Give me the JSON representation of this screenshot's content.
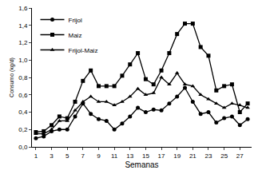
{
  "chart_data": {
    "type": "line",
    "x_label": "Semanas",
    "y_label": "Consumo (kg/d)",
    "x": [
      1,
      2,
      3,
      4,
      5,
      6,
      7,
      8,
      9,
      10,
      11,
      12,
      13,
      14,
      15,
      16,
      17,
      18,
      19,
      20,
      21,
      22,
      23,
      24,
      25,
      26,
      27,
      28
    ],
    "series": [
      {
        "name": "Frijol",
        "color": "#000000",
        "marker": "circle",
        "values": [
          0.1,
          0.12,
          0.18,
          0.2,
          0.2,
          0.35,
          0.5,
          0.38,
          0.32,
          0.3,
          0.2,
          0.27,
          0.35,
          0.45,
          0.4,
          0.43,
          0.42,
          0.5,
          0.58,
          0.68,
          0.52,
          0.38,
          0.4,
          0.28,
          0.33,
          0.35,
          0.25,
          0.32
        ]
      },
      {
        "name": "Maiz",
        "color": "#000000",
        "marker": "square",
        "values": [
          0.17,
          0.18,
          0.25,
          0.35,
          0.33,
          0.52,
          0.76,
          0.88,
          0.7,
          0.7,
          0.7,
          0.82,
          0.95,
          1.08,
          0.78,
          0.72,
          0.88,
          1.08,
          1.3,
          1.42,
          1.42,
          1.15,
          1.05,
          0.65,
          0.7,
          0.72,
          0.4,
          0.5
        ]
      },
      {
        "name": "Frijol-Maiz",
        "color": "#000000",
        "marker": "triangle-up",
        "values": [
          0.15,
          0.15,
          0.2,
          0.3,
          0.3,
          0.42,
          0.52,
          0.58,
          0.52,
          0.52,
          0.48,
          0.52,
          0.58,
          0.67,
          0.6,
          0.62,
          0.8,
          0.72,
          0.85,
          0.72,
          0.7,
          0.6,
          0.55,
          0.5,
          0.45,
          0.5,
          0.48,
          0.45
        ]
      }
    ],
    "xlim": [
      0.5,
      28.5
    ],
    "xticks": [
      1,
      3,
      5,
      7,
      9,
      11,
      13,
      15,
      17,
      19,
      21,
      23,
      25,
      27
    ],
    "ylim": [
      0,
      1.6
    ],
    "yticks": [
      {
        "value": 0,
        "label": "0,0"
      },
      {
        "value": 0.2,
        "label": "0,2"
      },
      {
        "value": 0.4,
        "label": "0,4"
      },
      {
        "value": 0.6,
        "label": "0,6"
      },
      {
        "value": 0.8,
        "label": "0,8"
      },
      {
        "value": 1.0,
        "label": "1,0"
      },
      {
        "value": 1.2,
        "label": "1,2"
      },
      {
        "value": 1.4,
        "label": "1,4"
      },
      {
        "value": 1.6,
        "label": "1,6"
      }
    ],
    "legend": "top-left",
    "grid": false
  }
}
